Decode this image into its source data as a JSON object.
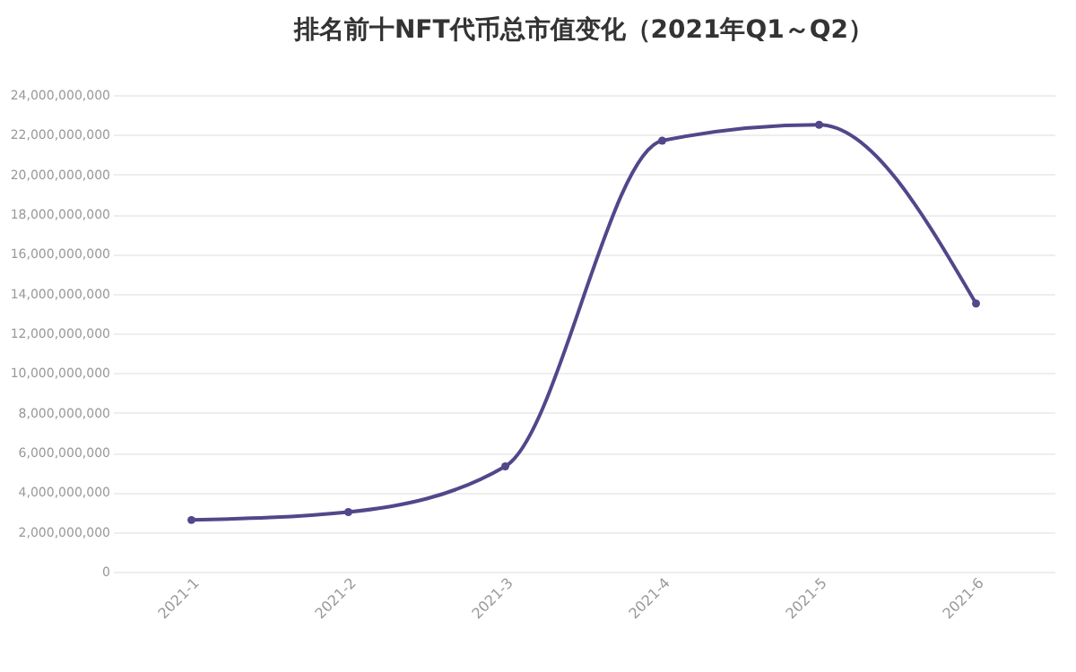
{
  "chart_data": {
    "type": "line",
    "title": "排名前十NFT代币总市值变化（2021年Q1～Q2）",
    "categories": [
      "2021-1",
      "2021-2",
      "2021-3",
      "2021-4",
      "2021-5",
      "2021-6"
    ],
    "series": [
      {
        "color": "#54468a",
        "values": [
          2600000000,
          3000000000,
          5300000000,
          21700000000,
          22500000000,
          13500000000
        ]
      }
    ],
    "ylim": [
      0,
      24000000000
    ],
    "yticks": [
      0,
      {
        "value": 2000000000,
        "label": "2,000,000,000"
      },
      {
        "value": 4000000000,
        "label": "4,000,000,000"
      },
      {
        "value": 6000000000,
        "label": "6,000,000,000"
      },
      {
        "value": 8000000000,
        "label": "8,000,000,000"
      },
      {
        "value": 10000000000,
        "label": "10,000,000,000"
      },
      {
        "value": 12000000000,
        "label": "12,000,000,000"
      },
      {
        "value": 14000000000,
        "label": "14,000,000,000"
      },
      {
        "value": 16000000000,
        "label": "16,000,000,000"
      },
      {
        "value": 18000000000,
        "label": "18,000,000,000"
      },
      {
        "value": 20000000000,
        "label": "20,000,000,000"
      },
      {
        "value": 22000000000,
        "label": "22,000,000,000"
      },
      {
        "value": 24000000000,
        "label": "24,000,000,000"
      }
    ],
    "grid": "y",
    "marker": "circle",
    "line_style": "solid"
  }
}
